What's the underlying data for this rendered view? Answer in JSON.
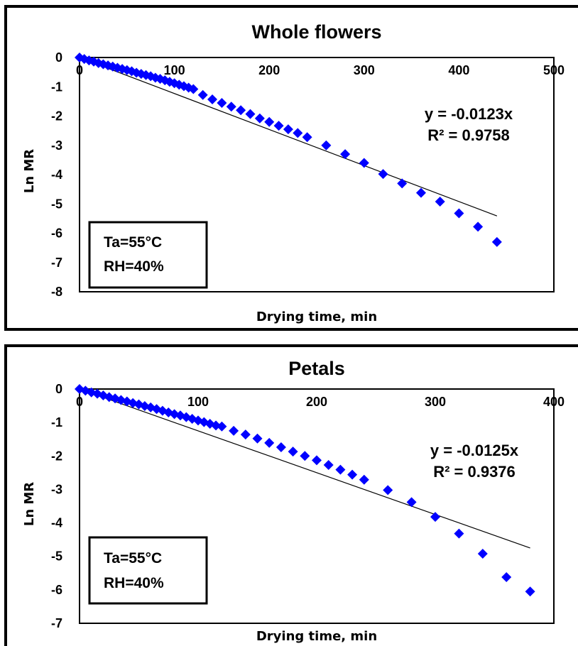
{
  "chart_data": [
    {
      "type": "scatter",
      "title": "Whole flowers",
      "xlabel": "Drying time, min",
      "ylabel": "Ln MR",
      "xlim": [
        0,
        500
      ],
      "ylim": [
        -8,
        0
      ],
      "xticks": [
        "0",
        "100",
        "200",
        "300",
        "400",
        "500"
      ],
      "yticks": [
        "0",
        "-1",
        "-2",
        "-3",
        "-4",
        "-5",
        "-6",
        "-7",
        "-8"
      ],
      "grid": false,
      "marker_color": "#0000ff",
      "trendline": {
        "type": "linear",
        "slope": -0.0123,
        "x_range": [
          0,
          440
        ]
      },
      "equation": "y = -0.0123x",
      "r_squared": "R² = 0.9758",
      "conditions": [
        "Ta=55°C",
        "RH=40%"
      ],
      "points": [
        [
          0,
          0
        ],
        [
          5,
          -0.05
        ],
        [
          10,
          -0.1
        ],
        [
          15,
          -0.14
        ],
        [
          20,
          -0.19
        ],
        [
          25,
          -0.23
        ],
        [
          30,
          -0.27
        ],
        [
          35,
          -0.31
        ],
        [
          40,
          -0.35
        ],
        [
          45,
          -0.39
        ],
        [
          50,
          -0.43
        ],
        [
          55,
          -0.47
        ],
        [
          60,
          -0.52
        ],
        [
          65,
          -0.56
        ],
        [
          70,
          -0.6
        ],
        [
          75,
          -0.64
        ],
        [
          80,
          -0.69
        ],
        [
          85,
          -0.73
        ],
        [
          90,
          -0.78
        ],
        [
          95,
          -0.83
        ],
        [
          100,
          -0.88
        ],
        [
          105,
          -0.93
        ],
        [
          110,
          -0.98
        ],
        [
          115,
          -1.03
        ],
        [
          120,
          -1.08
        ],
        [
          130,
          -1.28
        ],
        [
          140,
          -1.43
        ],
        [
          150,
          -1.55
        ],
        [
          160,
          -1.68
        ],
        [
          170,
          -1.8
        ],
        [
          180,
          -1.93
        ],
        [
          190,
          -2.08
        ],
        [
          200,
          -2.2
        ],
        [
          210,
          -2.33
        ],
        [
          220,
          -2.45
        ],
        [
          230,
          -2.58
        ],
        [
          240,
          -2.72
        ],
        [
          260,
          -3.0
        ],
        [
          280,
          -3.3
        ],
        [
          300,
          -3.6
        ],
        [
          320,
          -3.98
        ],
        [
          340,
          -4.3
        ],
        [
          360,
          -4.62
        ],
        [
          380,
          -4.92
        ],
        [
          400,
          -5.32
        ],
        [
          420,
          -5.78
        ],
        [
          440,
          -6.3
        ]
      ]
    },
    {
      "type": "scatter",
      "title": "Petals",
      "xlabel": "Drying time, min",
      "ylabel": "Ln MR",
      "xlim": [
        0,
        400
      ],
      "ylim": [
        -7,
        0
      ],
      "xticks": [
        "0",
        "100",
        "200",
        "300",
        "400"
      ],
      "yticks": [
        "0",
        "-1",
        "-2",
        "-3",
        "-4",
        "-5",
        "-6",
        "-7"
      ],
      "grid": false,
      "marker_color": "#0000ff",
      "trendline": {
        "type": "linear",
        "slope": -0.0125,
        "x_range": [
          0,
          380
        ]
      },
      "equation": "y = -0.0125x",
      "r_squared": "R² = 0.9376",
      "conditions": [
        "Ta=55°C",
        "RH=40%"
      ],
      "points": [
        [
          0,
          0
        ],
        [
          5,
          -0.05
        ],
        [
          10,
          -0.1
        ],
        [
          15,
          -0.14
        ],
        [
          20,
          -0.19
        ],
        [
          25,
          -0.24
        ],
        [
          30,
          -0.28
        ],
        [
          35,
          -0.33
        ],
        [
          40,
          -0.37
        ],
        [
          45,
          -0.42
        ],
        [
          50,
          -0.46
        ],
        [
          55,
          -0.51
        ],
        [
          60,
          -0.55
        ],
        [
          65,
          -0.6
        ],
        [
          70,
          -0.65
        ],
        [
          75,
          -0.7
        ],
        [
          80,
          -0.75
        ],
        [
          85,
          -0.79
        ],
        [
          90,
          -0.84
        ],
        [
          95,
          -0.89
        ],
        [
          100,
          -0.94
        ],
        [
          105,
          -0.99
        ],
        [
          110,
          -1.04
        ],
        [
          115,
          -1.09
        ],
        [
          120,
          -1.12
        ],
        [
          130,
          -1.25
        ],
        [
          140,
          -1.36
        ],
        [
          150,
          -1.48
        ],
        [
          160,
          -1.61
        ],
        [
          170,
          -1.74
        ],
        [
          180,
          -1.87
        ],
        [
          190,
          -2.0
        ],
        [
          200,
          -2.13
        ],
        [
          210,
          -2.27
        ],
        [
          220,
          -2.41
        ],
        [
          230,
          -2.56
        ],
        [
          240,
          -2.71
        ],
        [
          260,
          -3.02
        ],
        [
          280,
          -3.38
        ],
        [
          300,
          -3.82
        ],
        [
          320,
          -4.32
        ],
        [
          340,
          -4.92
        ],
        [
          360,
          -5.62
        ],
        [
          380,
          -6.05
        ]
      ]
    }
  ]
}
